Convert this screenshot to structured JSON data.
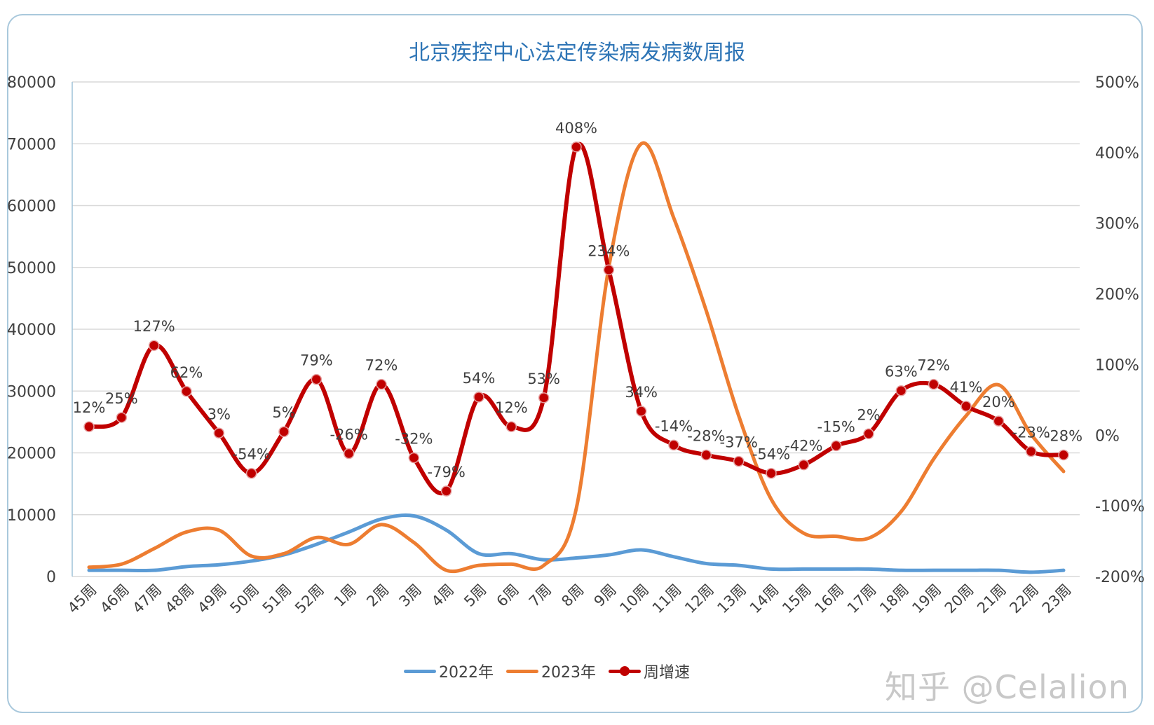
{
  "chart_data": {
    "type": "line",
    "title": "北京疾控中心法定传染病发病数周报",
    "categories": [
      "45周",
      "46周",
      "47周",
      "48周",
      "49周",
      "50周",
      "51周",
      "52周",
      "1周",
      "2周",
      "3周",
      "4周",
      "5周",
      "6周",
      "7周",
      "8周",
      "9周",
      "10周",
      "11周",
      "12周",
      "13周",
      "14周",
      "15周",
      "16周",
      "17周",
      "18周",
      "19周",
      "20周",
      "21周",
      "22周",
      "23周"
    ],
    "y_left": {
      "range": [
        0,
        80000
      ],
      "ticks": [
        "0",
        "10000",
        "20000",
        "30000",
        "40000",
        "50000",
        "60000",
        "70000",
        "80000"
      ]
    },
    "y_right": {
      "range": [
        -200,
        500
      ],
      "ticks": [
        "-200%",
        "-100%",
        "0%",
        "100%",
        "200%",
        "300%",
        "400%",
        "500%"
      ]
    },
    "grid": true,
    "legend_position": "bottom",
    "series": [
      {
        "name": "2022年",
        "axis": "left",
        "color": "#5b9bd5",
        "values": [
          1000,
          1000,
          1000,
          1600,
          1900,
          2500,
          3500,
          5200,
          7200,
          9300,
          9800,
          7500,
          3700,
          3700,
          2700,
          3000,
          3500,
          4300,
          3200,
          2100,
          1800,
          1200,
          1200,
          1200,
          1200,
          1000,
          1000,
          1000,
          1000,
          700,
          1000
        ]
      },
      {
        "name": "2023年",
        "axis": "left",
        "color": "#ed7d31",
        "values": [
          1500,
          2000,
          4500,
          7200,
          7500,
          3300,
          3700,
          6300,
          5200,
          8400,
          5500,
          1000,
          1800,
          2000,
          1800,
          11000,
          50000,
          70000,
          58000,
          43000,
          26000,
          12500,
          7000,
          6500,
          6200,
          10500,
          19000,
          26000,
          31000,
          23000,
          17000
        ]
      },
      {
        "name": "周增速",
        "axis": "right",
        "color": "#c00000",
        "markers": true,
        "values": [
          12,
          25,
          127,
          62,
          3,
          -54,
          5,
          79,
          -26,
          72,
          -32,
          -79,
          54,
          12,
          53,
          408,
          234,
          34,
          -14,
          -28,
          -37,
          -54,
          -42,
          -15,
          2,
          63,
          72,
          41,
          20,
          -23,
          -28
        ],
        "labels": [
          "12%",
          "25%",
          "127%",
          "62%",
          "3%",
          "-54%",
          "5%",
          "79%",
          "-26%",
          "72%",
          "-32%",
          "-79%",
          "54%",
          "12%",
          "53%",
          "408%",
          "234%",
          "34%",
          "-14%",
          "-28%",
          "-37%",
          "-54%",
          "-42%",
          "-15%",
          "2%",
          "63%",
          "72%",
          "41%",
          "20%",
          "-23%",
          "-28%"
        ]
      }
    ]
  },
  "watermark": "知乎 @Celalion"
}
